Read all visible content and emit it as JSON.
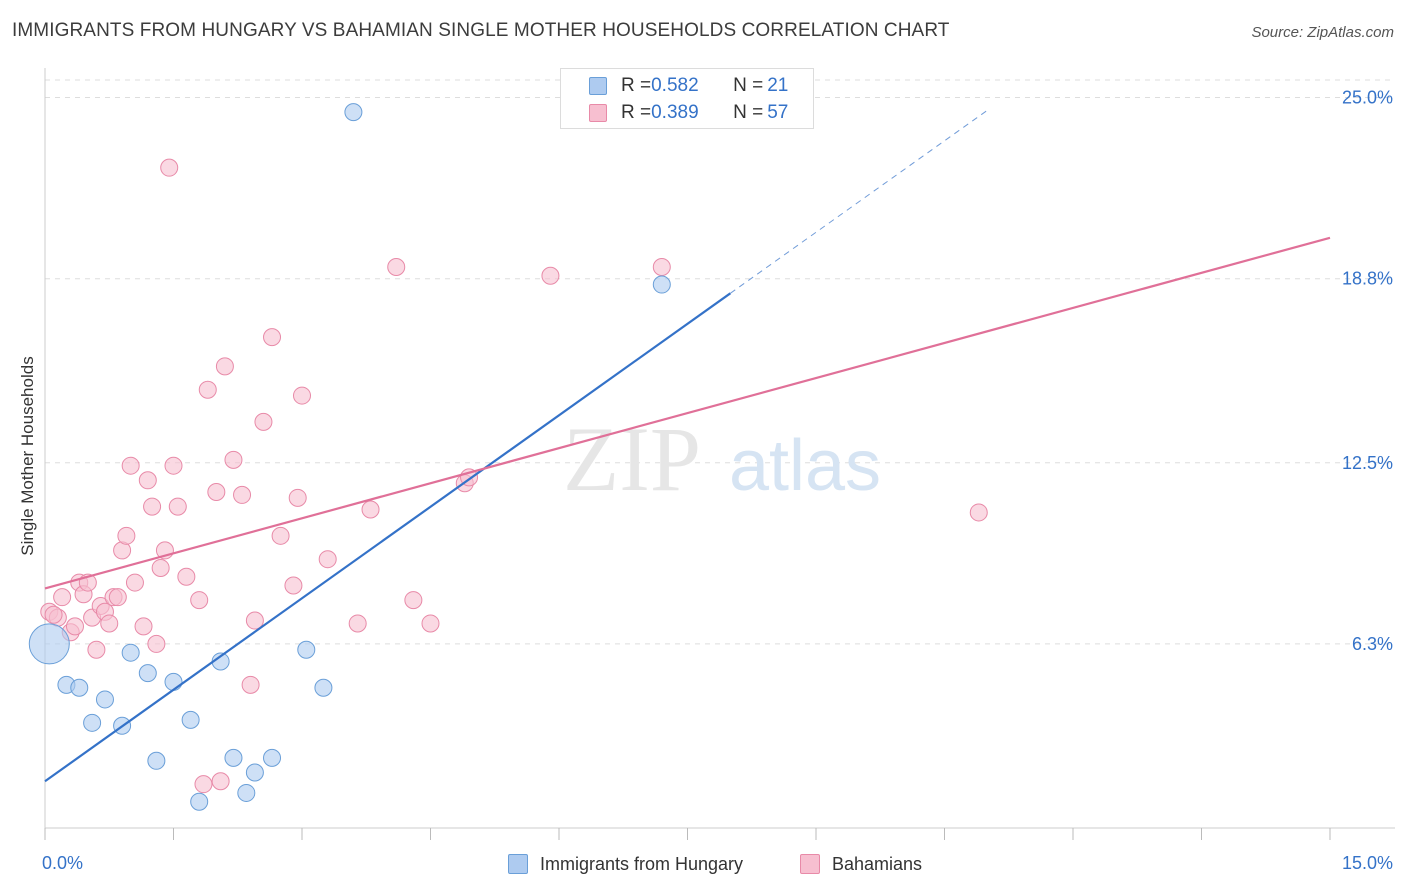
{
  "title": "IMMIGRANTS FROM HUNGARY VS BAHAMIAN SINGLE MOTHER HOUSEHOLDS CORRELATION CHART",
  "source": "Source: ZipAtlas.com",
  "watermark": {
    "zip": "ZIP",
    "atlas": "atlas"
  },
  "legend": {
    "rows": [
      {
        "r_label": "R = ",
        "r_value": "0.582",
        "n_label": "N = ",
        "n_value": "21",
        "color": "#aecbf0",
        "border": "#6a9fd8"
      },
      {
        "r_label": "R = ",
        "r_value": "0.389",
        "n_label": "N = ",
        "n_value": "57",
        "color": "#f7bfd0",
        "border": "#e88aa8"
      }
    ]
  },
  "bottom_legend": [
    {
      "label": "Immigrants from Hungary",
      "color": "#aecbf0",
      "border": "#6a9fd8"
    },
    {
      "label": "Bahamians",
      "color": "#f7bfd0",
      "border": "#e88aa8"
    }
  ],
  "chart_data": {
    "type": "scatter",
    "title": "IMMIGRANTS FROM HUNGARY VS BAHAMIAN SINGLE MOTHER HOUSEHOLDS CORRELATION CHART",
    "xlabel": "",
    "ylabel": "Single Mother Households",
    "xlim": [
      0,
      15
    ],
    "ylim": [
      0,
      25.6
    ],
    "x_tick_labels": [
      "0.0%",
      "15.0%"
    ],
    "y_ticks": [
      6.3,
      12.5,
      18.8,
      25.0
    ],
    "y_tick_labels": [
      "6.3%",
      "12.5%",
      "18.8%",
      "25.0%"
    ],
    "grid": true,
    "series": [
      {
        "name": "Immigrants from Hungary",
        "color": "#aecbf0",
        "stroke": "#6a9fd8",
        "line_color": "#3472c8",
        "trend": {
          "x0": 0,
          "y0": 1.6,
          "x1": 8.0,
          "y1": 18.3,
          "dashed_to_x": 11.0
        },
        "points": [
          {
            "x": 0.05,
            "y": 6.3,
            "big": true
          },
          {
            "x": 0.25,
            "y": 4.9
          },
          {
            "x": 0.4,
            "y": 4.8
          },
          {
            "x": 0.55,
            "y": 3.6
          },
          {
            "x": 0.7,
            "y": 4.4
          },
          {
            "x": 0.9,
            "y": 3.5
          },
          {
            "x": 1.0,
            "y": 6.0
          },
          {
            "x": 1.2,
            "y": 5.3
          },
          {
            "x": 1.3,
            "y": 2.3
          },
          {
            "x": 1.5,
            "y": 5.0
          },
          {
            "x": 1.7,
            "y": 3.7
          },
          {
            "x": 1.8,
            "y": 0.9
          },
          {
            "x": 2.05,
            "y": 5.7
          },
          {
            "x": 2.2,
            "y": 2.4
          },
          {
            "x": 2.35,
            "y": 1.2
          },
          {
            "x": 2.45,
            "y": 1.9
          },
          {
            "x": 2.65,
            "y": 2.4
          },
          {
            "x": 3.05,
            "y": 6.1
          },
          {
            "x": 3.25,
            "y": 4.8
          },
          {
            "x": 3.6,
            "y": 24.5
          },
          {
            "x": 7.2,
            "y": 18.6
          }
        ]
      },
      {
        "name": "Bahamians",
        "color": "#f7bfd0",
        "stroke": "#e88aa8",
        "line_color": "#e07098",
        "trend": {
          "x0": 0,
          "y0": 8.2,
          "x1": 15.0,
          "y1": 20.2
        },
        "points": [
          {
            "x": 0.05,
            "y": 7.4
          },
          {
            "x": 0.15,
            "y": 7.2
          },
          {
            "x": 0.2,
            "y": 7.9
          },
          {
            "x": 0.3,
            "y": 6.7
          },
          {
            "x": 0.35,
            "y": 6.9
          },
          {
            "x": 0.4,
            "y": 8.4
          },
          {
            "x": 0.45,
            "y": 8.0
          },
          {
            "x": 0.5,
            "y": 8.4
          },
          {
            "x": 0.55,
            "y": 7.2
          },
          {
            "x": 0.6,
            "y": 6.1
          },
          {
            "x": 0.65,
            "y": 7.6
          },
          {
            "x": 0.7,
            "y": 7.4
          },
          {
            "x": 0.75,
            "y": 7.0
          },
          {
            "x": 0.8,
            "y": 7.9
          },
          {
            "x": 0.85,
            "y": 7.9
          },
          {
            "x": 0.9,
            "y": 9.5
          },
          {
            "x": 0.95,
            "y": 10.0
          },
          {
            "x": 1.0,
            "y": 12.4
          },
          {
            "x": 1.05,
            "y": 8.4
          },
          {
            "x": 1.15,
            "y": 6.9
          },
          {
            "x": 1.2,
            "y": 11.9
          },
          {
            "x": 1.25,
            "y": 11.0
          },
          {
            "x": 1.3,
            "y": 6.3
          },
          {
            "x": 1.35,
            "y": 8.9
          },
          {
            "x": 1.4,
            "y": 9.5
          },
          {
            "x": 1.45,
            "y": 22.6
          },
          {
            "x": 1.5,
            "y": 12.4
          },
          {
            "x": 1.55,
            "y": 11.0
          },
          {
            "x": 1.65,
            "y": 8.6
          },
          {
            "x": 1.8,
            "y": 7.8
          },
          {
            "x": 1.85,
            "y": 1.5
          },
          {
            "x": 1.9,
            "y": 15.0
          },
          {
            "x": 2.0,
            "y": 11.5
          },
          {
            "x": 2.05,
            "y": 1.6
          },
          {
            "x": 2.1,
            "y": 15.8
          },
          {
            "x": 2.2,
            "y": 12.6
          },
          {
            "x": 2.3,
            "y": 11.4
          },
          {
            "x": 2.4,
            "y": 4.9
          },
          {
            "x": 2.45,
            "y": 7.1
          },
          {
            "x": 2.55,
            "y": 13.9
          },
          {
            "x": 2.65,
            "y": 16.8
          },
          {
            "x": 2.75,
            "y": 10.0
          },
          {
            "x": 2.9,
            "y": 8.3
          },
          {
            "x": 2.95,
            "y": 11.3
          },
          {
            "x": 3.0,
            "y": 14.8
          },
          {
            "x": 3.3,
            "y": 9.2
          },
          {
            "x": 3.65,
            "y": 7.0
          },
          {
            "x": 3.8,
            "y": 10.9
          },
          {
            "x": 4.1,
            "y": 19.2
          },
          {
            "x": 4.3,
            "y": 7.8
          },
          {
            "x": 4.5,
            "y": 7.0
          },
          {
            "x": 4.9,
            "y": 11.8
          },
          {
            "x": 4.95,
            "y": 12.0
          },
          {
            "x": 5.9,
            "y": 18.9
          },
          {
            "x": 7.2,
            "y": 19.2
          },
          {
            "x": 10.9,
            "y": 10.8
          },
          {
            "x": 0.1,
            "y": 7.3
          }
        ]
      }
    ]
  }
}
